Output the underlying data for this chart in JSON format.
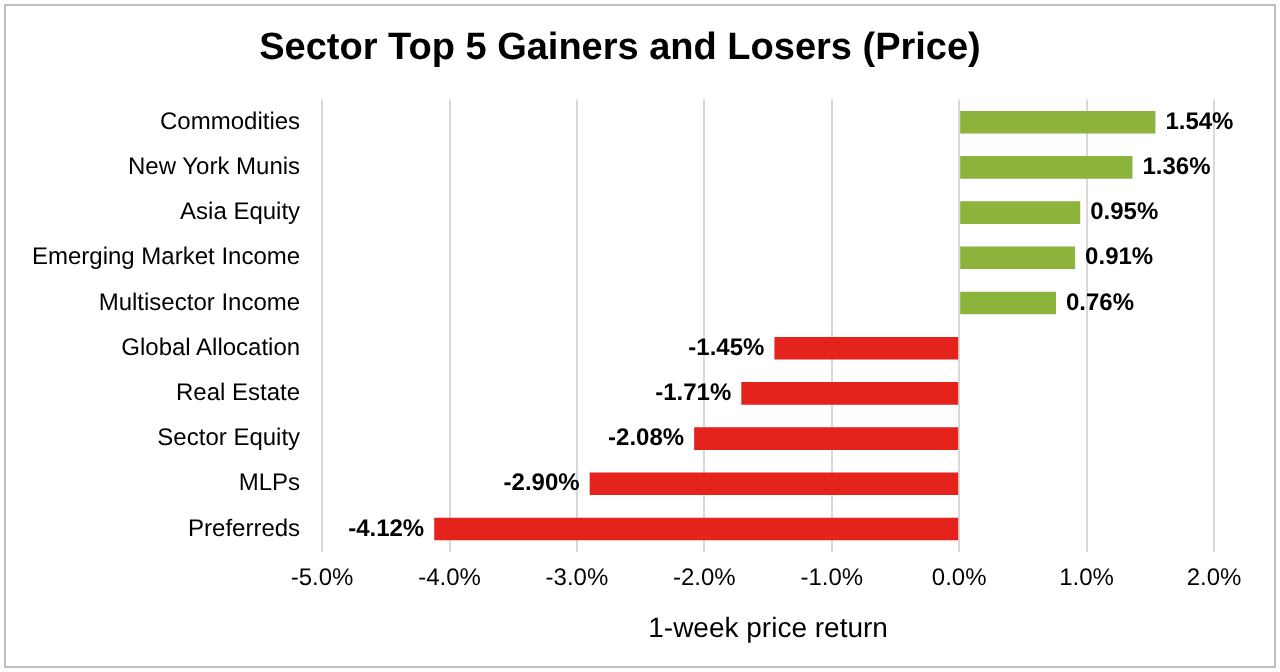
{
  "chart_data": {
    "type": "bar",
    "orientation": "horizontal",
    "title": "Sector Top 5 Gainers and Losers (Price)",
    "xlabel": "1-week price return",
    "categories": [
      "Commodities",
      "New York Munis",
      "Asia Equity",
      "Emerging Market Income",
      "Multisector Income",
      "Global Allocation",
      "Real Estate",
      "Sector Equity",
      "MLPs",
      "Preferreds"
    ],
    "values": [
      1.54,
      1.36,
      0.95,
      0.91,
      0.76,
      -1.45,
      -1.71,
      -2.08,
      -2.9,
      -4.12
    ],
    "value_labels": [
      "1.54%",
      "1.36%",
      "0.95%",
      "0.91%",
      "0.76%",
      "-1.45%",
      "-1.71%",
      "-2.08%",
      "-2.90%",
      "-4.12%"
    ],
    "colors": [
      "#8cb33c",
      "#8cb33c",
      "#8cb33c",
      "#8cb33c",
      "#8cb33c",
      "#e3231c",
      "#e3231c",
      "#e3231c",
      "#e3231c",
      "#e3231c"
    ],
    "xlim": [
      -5,
      2
    ],
    "xticks": [
      {
        "value": -5,
        "label": "-5.0%"
      },
      {
        "value": -4,
        "label": "-4.0%"
      },
      {
        "value": -3,
        "label": "-3.0%"
      },
      {
        "value": -2,
        "label": "-2.0%"
      },
      {
        "value": -1,
        "label": "-1.0%"
      },
      {
        "value": 0,
        "label": "0.0%"
      },
      {
        "value": 1,
        "label": "1.0%"
      },
      {
        "value": 2,
        "label": "2.0%"
      }
    ],
    "grid": "x"
  }
}
